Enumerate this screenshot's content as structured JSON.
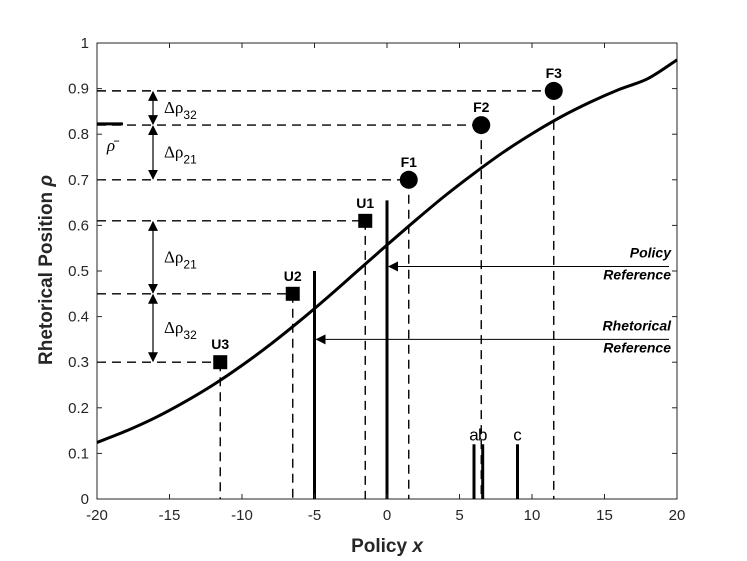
{
  "chart_data": {
    "type": "line",
    "xlabel": "Policy",
    "xlabel_var": "x",
    "ylabel": "Rhetorical Position",
    "ylabel_var": "ρ",
    "xlim": [
      -20,
      20
    ],
    "ylim": [
      0,
      1
    ],
    "grid": false,
    "x_ticks": [
      -20,
      -15,
      -10,
      -5,
      0,
      5,
      10,
      15,
      20
    ],
    "x_tick_labels": [
      "-20",
      "-15",
      "-10",
      "-5",
      "0",
      "5",
      "10",
      "15",
      "20"
    ],
    "y_ticks": [
      0,
      0.1,
      0.2,
      0.3,
      0.4,
      0.5,
      0.6,
      0.7,
      0.8,
      0.9,
      1
    ],
    "y_tick_labels": [
      "0",
      "0.1",
      "0.2",
      "0.3",
      "0.4",
      "0.5",
      "0.6",
      "0.7",
      "0.8",
      "0.9",
      "1"
    ],
    "curve": {
      "x": [
        -20,
        -18,
        -16,
        -14,
        -12,
        -10,
        -8,
        -6,
        -4,
        -2,
        0,
        2,
        4,
        6,
        8,
        10,
        12,
        14,
        16,
        18,
        20
      ],
      "y": [
        0.124,
        0.149,
        0.178,
        0.212,
        0.25,
        0.293,
        0.34,
        0.391,
        0.445,
        0.501,
        0.557,
        0.612,
        0.665,
        0.714,
        0.76,
        0.801,
        0.838,
        0.87,
        0.898,
        0.922,
        0.963
      ]
    },
    "points": [
      {
        "label": "U3",
        "x": -11.5,
        "y": 0.3,
        "marker": "square"
      },
      {
        "label": "U2",
        "x": -6.5,
        "y": 0.45,
        "marker": "square"
      },
      {
        "label": "U1",
        "x": -1.5,
        "y": 0.61,
        "marker": "square"
      },
      {
        "label": "F1",
        "x": 1.5,
        "y": 0.7,
        "marker": "circle"
      },
      {
        "label": "F2",
        "x": 6.5,
        "y": 0.82,
        "marker": "circle"
      },
      {
        "label": "F3",
        "x": 11.5,
        "y": 0.895,
        "marker": "circle"
      }
    ],
    "references": [
      {
        "label_lines": [
          "Policy",
          "Reference"
        ],
        "x": 0,
        "y_top": 0.655
      },
      {
        "label_lines": [
          "Rhetorical",
          "Reference"
        ],
        "x": -5,
        "y_top": 0.5
      }
    ],
    "voters": [
      {
        "label": "a",
        "x": 6.0,
        "height": 0.12
      },
      {
        "label": "b",
        "x": 6.6,
        "height": 0.12
      },
      {
        "label": "c",
        "x": 9.0,
        "height": 0.12
      }
    ],
    "rho_bar": {
      "label": "ρ̄",
      "y": 0.805
    },
    "gaps": [
      {
        "label": "Δρ",
        "sub": "32",
        "y_from": 0.82,
        "y_to": 0.895
      },
      {
        "label": "Δρ",
        "sub": "21",
        "y_from": 0.7,
        "y_to": 0.82
      },
      {
        "label": "Δρ",
        "sub": "21",
        "y_from": 0.45,
        "y_to": 0.61
      },
      {
        "label": "Δρ",
        "sub": "32",
        "y_from": 0.3,
        "y_to": 0.45
      }
    ]
  }
}
